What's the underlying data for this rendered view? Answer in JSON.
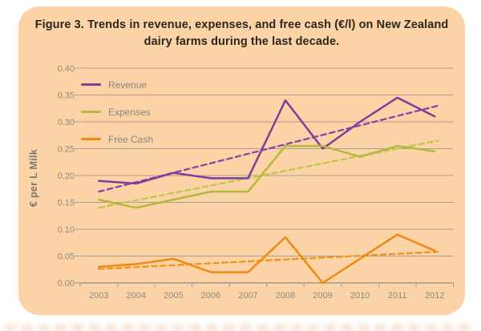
{
  "figure": {
    "title_lines": [
      "Figure 3. Trends in revenue, expenses, and free cash (€/l) on New Zealand",
      "dairy farms during the last decade."
    ]
  },
  "colors": {
    "panel_background": "#fbd3a6",
    "page_background": "#ffffff",
    "gridline": "#a79f95",
    "axis_text": "#8d8a85",
    "title_text": "#2d261d"
  },
  "chart_data": {
    "type": "line",
    "title": "Figure 3. Trends in revenue, expenses, and free cash (€/l) on New Zealand dairy farms during the last decade.",
    "xlabel": "",
    "ylabel": "€ per L Milk",
    "categories": [
      "2003",
      "2004",
      "2005",
      "2006",
      "2007",
      "2008",
      "2009",
      "2010",
      "2011",
      "2012"
    ],
    "series": [
      {
        "name": "Revenue",
        "color": "#7c3f98",
        "values": [
          0.19,
          0.185,
          0.205,
          0.195,
          0.195,
          0.34,
          0.25,
          0.3,
          0.345,
          0.31
        ]
      },
      {
        "name": "Expenses",
        "color": "#b3b93a",
        "values": [
          0.155,
          0.14,
          0.155,
          0.17,
          0.17,
          0.255,
          0.255,
          0.235,
          0.255,
          0.245
        ]
      },
      {
        "name": "Free Cash",
        "color": "#ee8912",
        "values": [
          0.03,
          0.035,
          0.045,
          0.02,
          0.02,
          0.085,
          0.0,
          0.045,
          0.09,
          0.06
        ]
      }
    ],
    "trendlines": [
      {
        "series": "Revenue",
        "style": "dashed",
        "color": "#8747a3",
        "start_value": 0.17,
        "end_value": 0.33
      },
      {
        "series": "Expenses",
        "style": "dashed",
        "color": "#c0c64c",
        "start_value": 0.14,
        "end_value": 0.265
      },
      {
        "series": "Free Cash",
        "style": "dashed",
        "color": "#f0941e",
        "start_value": 0.026,
        "end_value": 0.058
      }
    ],
    "ylim": [
      0.0,
      0.4
    ],
    "ytick_step": 0.05,
    "ytick_labels": [
      "0.00",
      "0.05",
      "0.10",
      "0.15",
      "0.20",
      "0.25",
      "0.30",
      "0.35",
      "0.40"
    ],
    "grid": true,
    "legend_position": "upper-left"
  }
}
